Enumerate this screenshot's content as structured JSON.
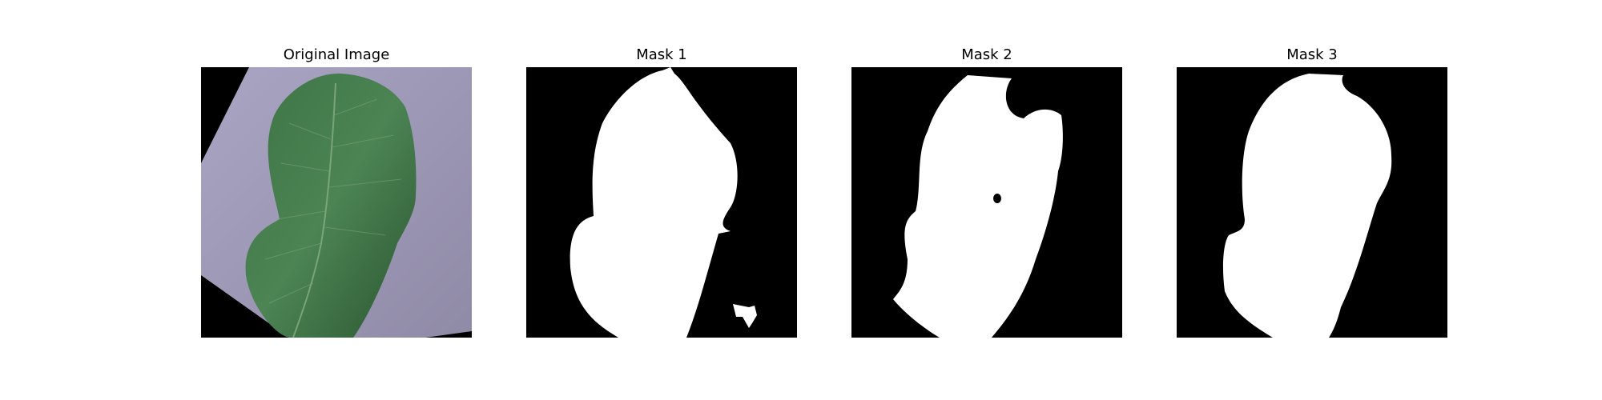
{
  "panels": [
    {
      "title": "Original Image"
    },
    {
      "title": "Mask 1"
    },
    {
      "title": "Mask 2"
    },
    {
      "title": "Mask 3"
    }
  ],
  "colors": {
    "background": "#ffffff",
    "mask_background": "#000000",
    "mask_foreground": "#ffffff",
    "paper": "#9f9ab7",
    "leaf_dark": "#2f5a32",
    "leaf_light": "#4f8556"
  }
}
